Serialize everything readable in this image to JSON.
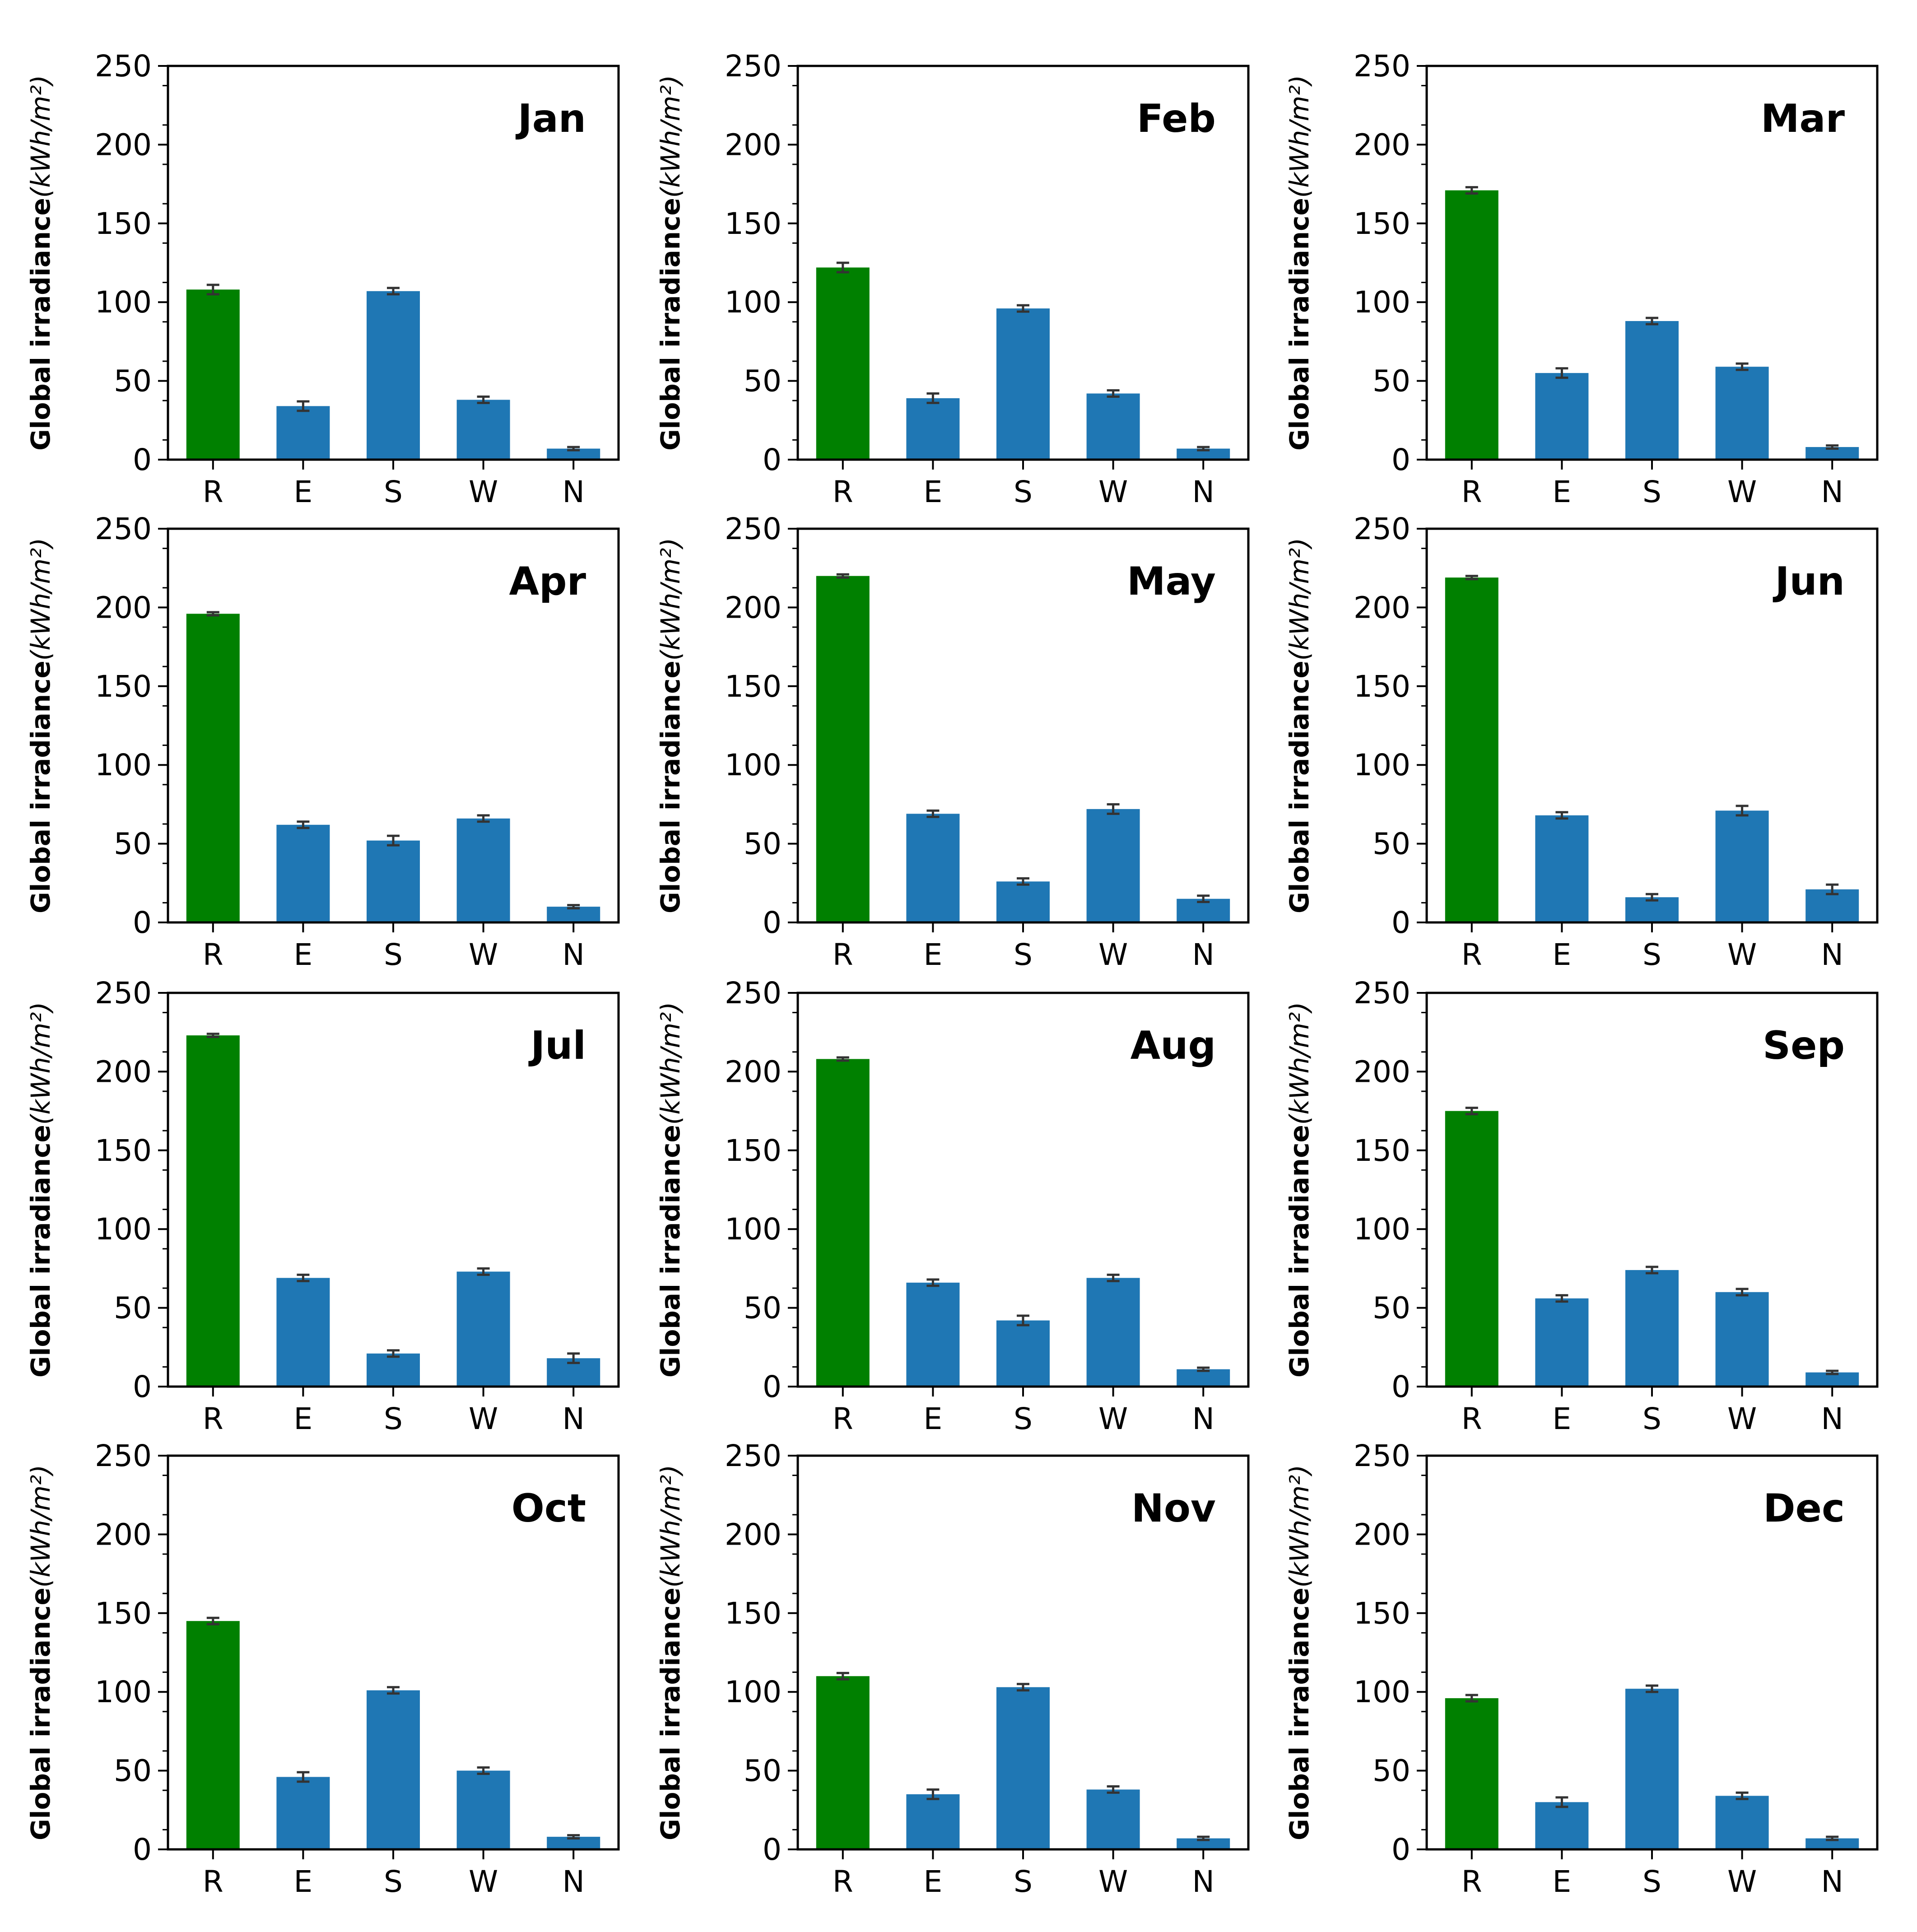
{
  "chart_data": {
    "type": "bar",
    "layout": "4x3 grid of small multiples",
    "categories": [
      "R",
      "E",
      "S",
      "W",
      "N"
    ],
    "ylim": [
      0,
      250
    ],
    "yticks": [
      0,
      50,
      100,
      150,
      200,
      250
    ],
    "ylabel_main": "Global irradiance",
    "ylabel_unit": "(kWh/m²)",
    "highlight_category": "R",
    "colors": {
      "highlight": "#008000",
      "default": "#1f77b4",
      "errorbar": "#333333"
    },
    "panels": [
      {
        "title": "Jan",
        "values": [
          108,
          34,
          107,
          38,
          7
        ],
        "errors": [
          3,
          3,
          2,
          2,
          1
        ]
      },
      {
        "title": "Feb",
        "values": [
          122,
          39,
          96,
          42,
          7
        ],
        "errors": [
          3,
          3,
          2,
          2,
          1
        ]
      },
      {
        "title": "Mar",
        "values": [
          171,
          55,
          88,
          59,
          8
        ],
        "errors": [
          2,
          3,
          2,
          2,
          1
        ]
      },
      {
        "title": "Apr",
        "values": [
          196,
          62,
          52,
          66,
          10
        ],
        "errors": [
          1,
          2,
          3,
          2,
          1
        ]
      },
      {
        "title": "May",
        "values": [
          220,
          69,
          26,
          72,
          15
        ],
        "errors": [
          1,
          2,
          2,
          3,
          2
        ]
      },
      {
        "title": "Jun",
        "values": [
          219,
          68,
          16,
          71,
          21
        ],
        "errors": [
          1,
          2,
          2,
          3,
          3
        ]
      },
      {
        "title": "Jul",
        "values": [
          223,
          69,
          21,
          73,
          18
        ],
        "errors": [
          1,
          2,
          2,
          2,
          3
        ]
      },
      {
        "title": "Aug",
        "values": [
          208,
          66,
          42,
          69,
          11
        ],
        "errors": [
          1,
          2,
          3,
          2,
          1
        ]
      },
      {
        "title": "Sep",
        "values": [
          175,
          56,
          74,
          60,
          9
        ],
        "errors": [
          2,
          2,
          2,
          2,
          1
        ]
      },
      {
        "title": "Oct",
        "values": [
          145,
          46,
          101,
          50,
          8
        ],
        "errors": [
          2,
          3,
          2,
          2,
          1
        ]
      },
      {
        "title": "Nov",
        "values": [
          110,
          35,
          103,
          38,
          7
        ],
        "errors": [
          2,
          3,
          2,
          2,
          1
        ]
      },
      {
        "title": "Dec",
        "values": [
          96,
          30,
          102,
          34,
          7
        ],
        "errors": [
          2,
          3,
          2,
          2,
          1
        ]
      }
    ]
  }
}
